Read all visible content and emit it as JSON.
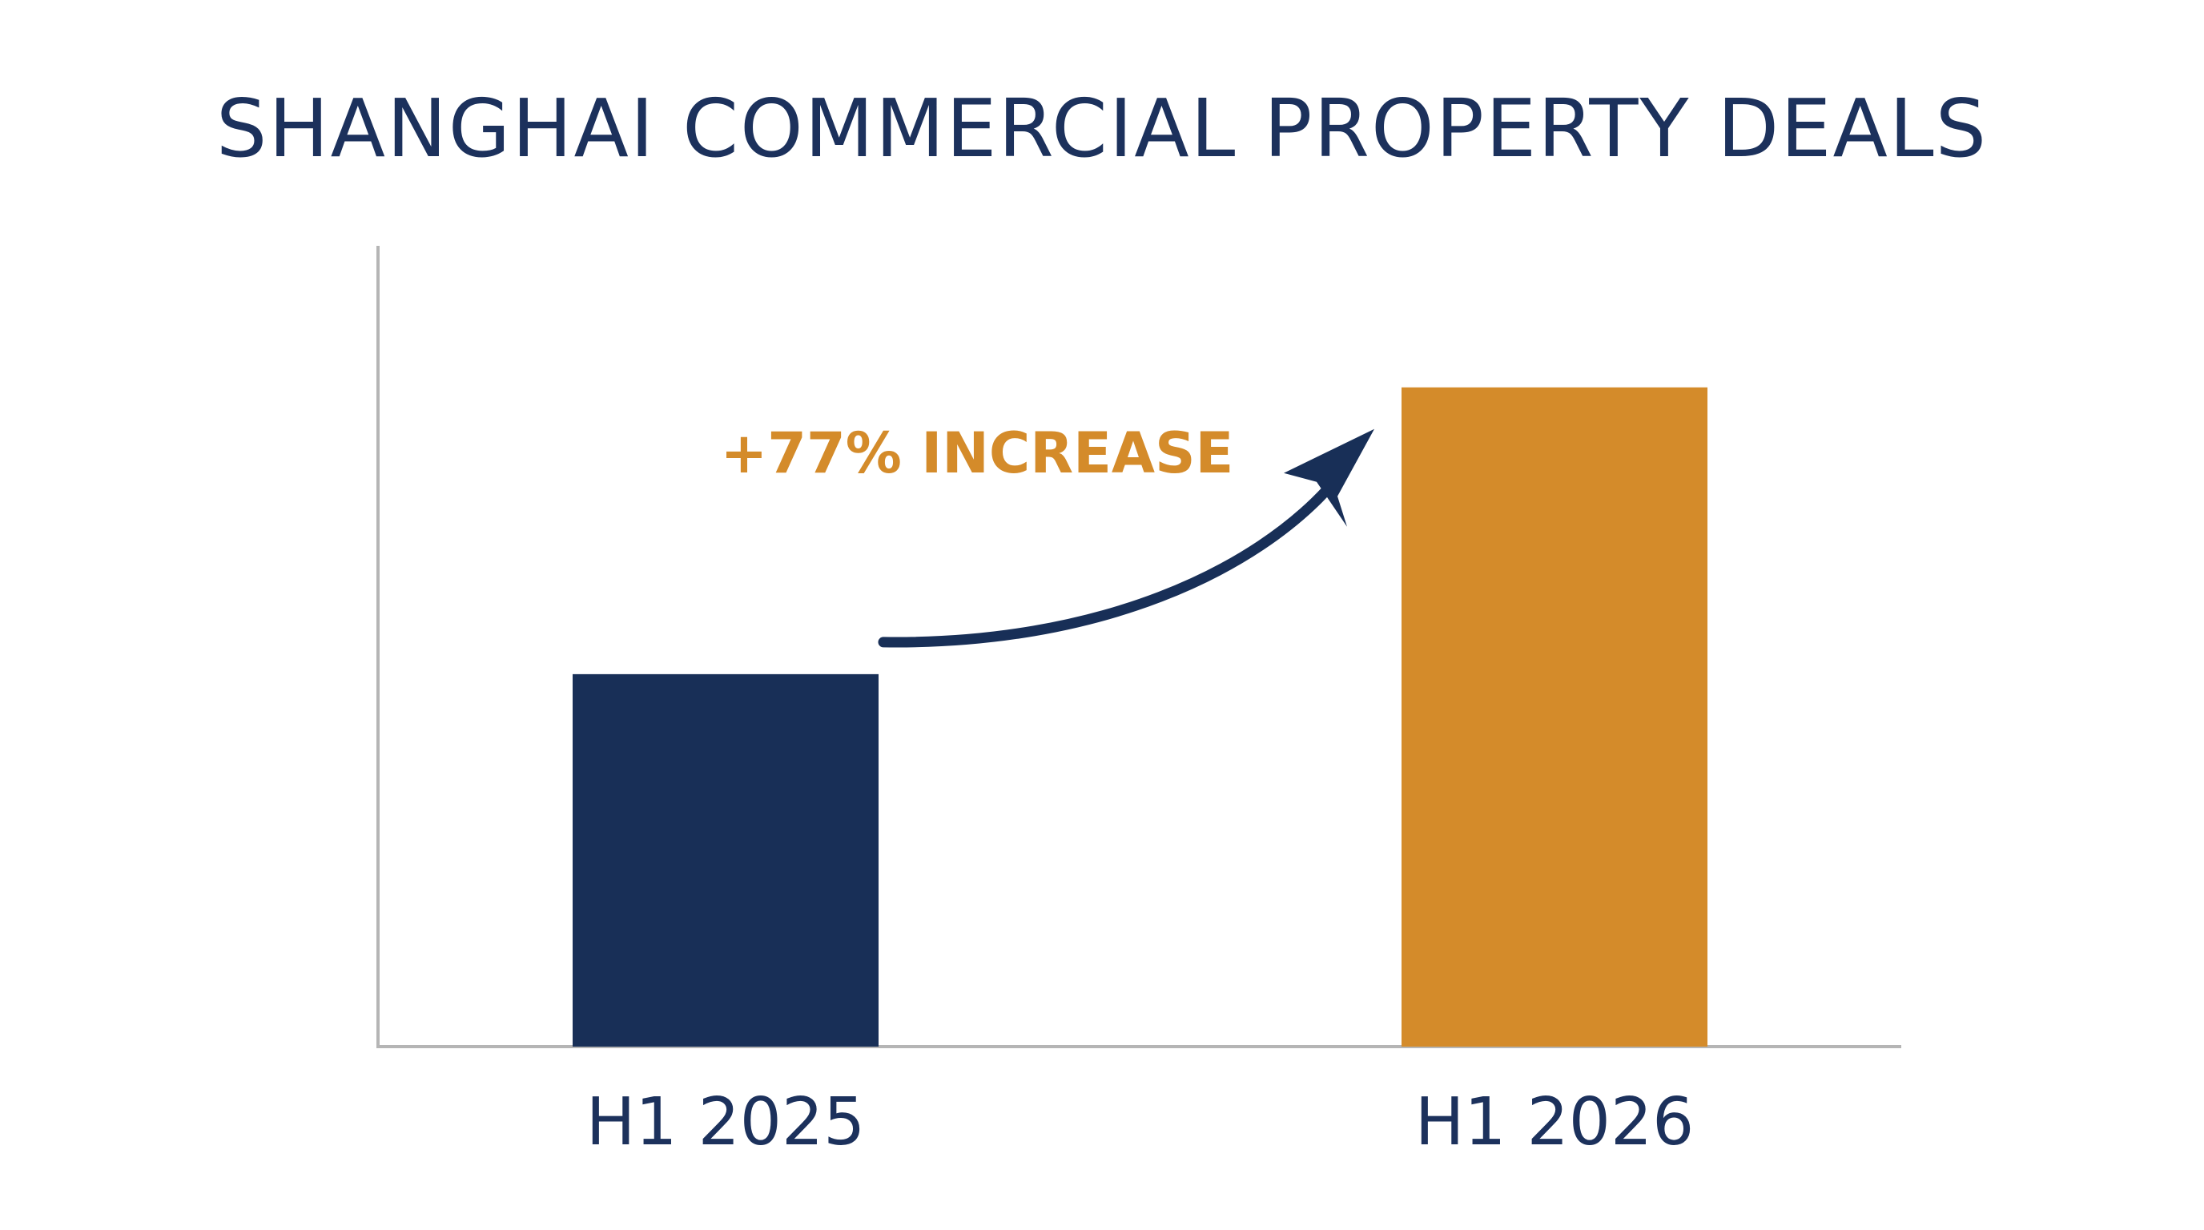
{
  "chart_data": {
    "type": "bar",
    "title": "SHANGHAI COMMERCIAL PROPERTY DEALS",
    "categories": [
      "H1 2025",
      "H1 2026"
    ],
    "values": [
      100,
      177
    ],
    "ylim": [
      0,
      215
    ],
    "xlabel": "",
    "ylabel": "",
    "grid": false,
    "bar_colors": [
      "#182f57",
      "#d48b2a"
    ],
    "axis_color": "#b5b5b5",
    "annotation": {
      "text": "+77% INCREASE",
      "color": "#d48b2a",
      "arrow_color": "#182f57"
    }
  }
}
